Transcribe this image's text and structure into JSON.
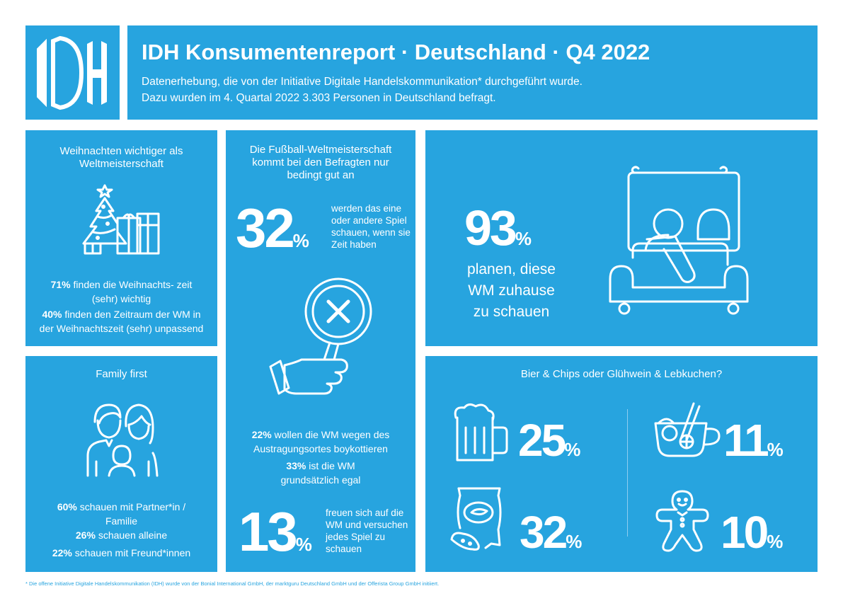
{
  "header": {
    "logo_text": "IDH",
    "title": "IDH Konsumentenreport · Deutschland · Q4 2022",
    "subtitle_line1": "Datenerhebung, die von der Initiative Digitale Handelskommunikation* durchgeführt wurde.",
    "subtitle_line2": "Dazu wurden im 4. Quartal 2022 3.303 Personen in Deutschland befragt."
  },
  "christmas": {
    "title": "Weihnachten wichtiger als Weltmeisterschaft",
    "stat1_value": "71%",
    "stat1_text": "finden die Weihnachts- zeit (sehr) wichtig",
    "stat2_value": "40%",
    "stat2_text": "finden den Zeitraum der WM in der Weihnachtszeit (sehr) unpassend",
    "icon": "christmas-tree-gifts-icon"
  },
  "family": {
    "title": "Family first",
    "stat1_value": "60%",
    "stat1_text": "schauen mit Partner*in / Familie",
    "stat2_value": "26%",
    "stat2_text": "schauen alleine",
    "stat3_value": "22%",
    "stat3_text": "schauen mit Freund*innen",
    "icon": "family-icon"
  },
  "worldcup": {
    "title": "Die Fußball-Weltmeisterschaft kommt bei den Befragten nur bedingt gut an",
    "big1_value": "32",
    "big1_text": "werden das eine oder andere Spiel schauen, wenn sie Zeit haben",
    "stat1_value": "22%",
    "stat1_text": "wollen die WM wegen des Austragungsortes boykottieren",
    "stat2_value": "33%",
    "stat2_text": "ist die WM grundsätzlich egal",
    "big2_value": "13",
    "big2_text": "freuen sich auf die WM und versuchen jedes Spiel zu schauen",
    "icon": "magnifier-x-icon"
  },
  "home": {
    "big_value": "93",
    "text": "planen, diese WM zuhause zu schauen",
    "icon": "tv-couch-icon"
  },
  "snacks": {
    "title": "Bier & Chips oder Glühwein & Lebkuchen?",
    "beer_value": "25",
    "mulled_wine_value": "11",
    "chips_value": "32",
    "gingerbread_value": "10"
  },
  "percent_sign": "%",
  "footnote": "* Die offene Initiative Digitale Handelskommunikation (IDH) wurde von der Bonial International GmbH, der marktguru Deutschland GmbH und der Offerista Group GmbH initiiert.",
  "colors": {
    "accent": "#27a4df",
    "text": "#ffffff"
  }
}
